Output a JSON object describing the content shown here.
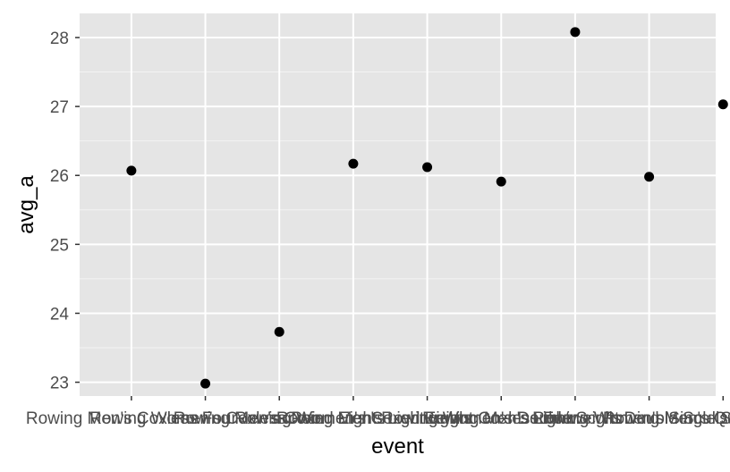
{
  "chart_data": {
    "type": "scatter",
    "xlabel": "event",
    "ylabel": "avg_a",
    "ylim": [
      22.8,
      28.35
    ],
    "yticks": [
      23,
      24,
      25,
      26,
      27,
      28
    ],
    "categories": [
      "Rowing Men's Coxless Four",
      "Rowing Women's Coxless Pair",
      "Rowing Men's Coxed Eights",
      "Rowing Women's Coxed Eights",
      "Rowing Men's Lightweight Coxless Four",
      "Rowing Women's Double Sculls",
      "Rowing Men's Lightweight Double Sculls",
      "Rowing Women's Single Sculls",
      "Rowing Men's Quadruple Sculls"
    ],
    "values": [
      26.07,
      22.98,
      23.73,
      26.17,
      26.12,
      25.91,
      28.08,
      25.98,
      27.03
    ],
    "grid": true,
    "colors": {
      "panel": "#e5e5e5",
      "grid_major": "#ffffff",
      "point": "#000000",
      "tick_text": "#4d4d4d",
      "axis_title": "#000000"
    }
  }
}
